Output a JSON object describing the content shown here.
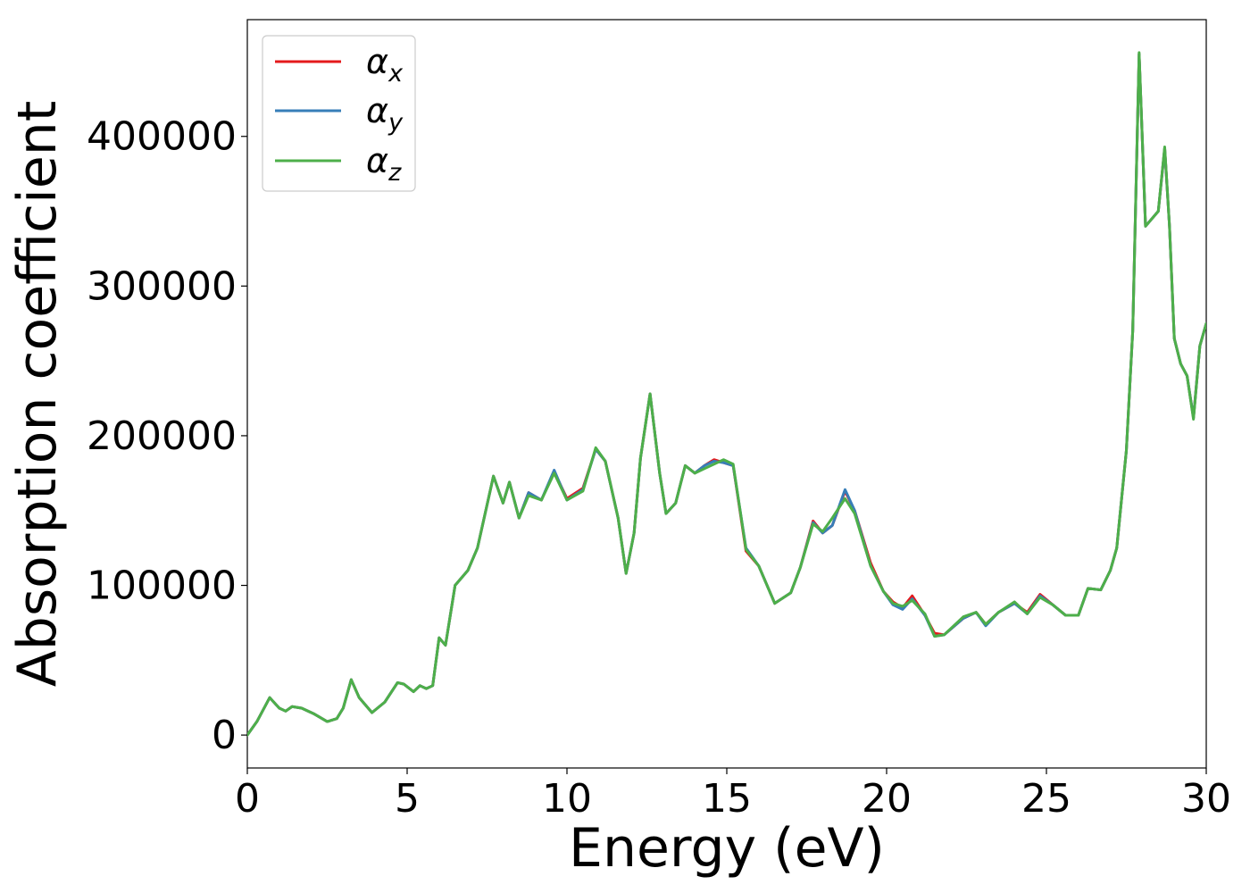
{
  "chart_data": {
    "type": "line",
    "xlabel": "Energy (eV)",
    "ylabel": "Absorption coefficient",
    "xlim": [
      0,
      30
    ],
    "ylim": [
      -22000,
      478000
    ],
    "xticks": [
      0,
      5,
      10,
      15,
      20,
      25,
      30
    ],
    "xtick_labels": [
      "0",
      "5",
      "10",
      "15",
      "20",
      "25",
      "30"
    ],
    "yticks": [
      0,
      100000,
      200000,
      300000,
      400000
    ],
    "ytick_labels": [
      "0",
      "100000",
      "200000",
      "300000",
      "400000"
    ],
    "grid": false,
    "legend_position": "upper-left",
    "x": [
      0,
      0.3,
      0.7,
      1.0,
      1.2,
      1.4,
      1.7,
      2.1,
      2.5,
      2.8,
      3.0,
      3.25,
      3.5,
      3.9,
      4.3,
      4.7,
      4.9,
      5.2,
      5.4,
      5.6,
      5.8,
      6.0,
      6.2,
      6.5,
      6.9,
      7.2,
      7.7,
      8.0,
      8.2,
      8.5,
      8.8,
      9.2,
      9.6,
      10.0,
      10.5,
      10.9,
      11.2,
      11.6,
      11.85,
      12.1,
      12.3,
      12.6,
      12.9,
      13.1,
      13.4,
      13.7,
      14.0,
      14.3,
      14.6,
      14.9,
      15.2,
      15.6,
      16.0,
      16.5,
      17.0,
      17.3,
      17.7,
      18.0,
      18.3,
      18.7,
      19.0,
      19.5,
      19.9,
      20.2,
      20.5,
      20.8,
      21.2,
      21.5,
      21.8,
      22.4,
      22.8,
      23.1,
      23.5,
      24.0,
      24.4,
      24.8,
      25.2,
      25.6,
      26.0,
      26.3,
      26.7,
      27.0,
      27.2,
      27.5,
      27.7,
      27.9,
      28.1,
      28.5,
      28.7,
      28.85,
      29.0,
      29.2,
      29.4,
      29.6,
      29.8,
      30.0
    ],
    "series": [
      {
        "name": "α_x",
        "color": "#e41a1c",
        "values": [
          0,
          9000,
          25000,
          18000,
          16000,
          19000,
          18000,
          14000,
          9000,
          11000,
          18000,
          37000,
          25000,
          15000,
          22000,
          35000,
          34000,
          29000,
          33000,
          31000,
          33000,
          65000,
          60000,
          100000,
          110000,
          125000,
          173000,
          155000,
          169000,
          145000,
          162000,
          157000,
          176000,
          158000,
          165000,
          191000,
          183000,
          145000,
          108000,
          135000,
          185000,
          228000,
          175000,
          148000,
          155000,
          180000,
          175000,
          180000,
          184000,
          182000,
          180000,
          123000,
          113000,
          88000,
          95000,
          112000,
          143000,
          135000,
          140000,
          163000,
          150000,
          115000,
          96000,
          89000,
          85000,
          93000,
          80000,
          68000,
          67000,
          78000,
          82000,
          74000,
          82000,
          88000,
          82000,
          94000,
          87000,
          80000,
          80000,
          98000,
          97000,
          110000,
          125000,
          190000,
          270000,
          455000,
          340000,
          350000,
          392000,
          340000,
          265000,
          248000,
          240000,
          212000,
          260000,
          275000
        ]
      },
      {
        "name": "α_y",
        "color": "#377eb8",
        "values": [
          0,
          9000,
          25000,
          18000,
          16000,
          19000,
          18000,
          14000,
          9000,
          11000,
          18000,
          37000,
          25000,
          15000,
          22000,
          35000,
          34000,
          29000,
          33000,
          31000,
          33000,
          65000,
          60000,
          100000,
          110000,
          125000,
          173000,
          155000,
          169000,
          145000,
          162000,
          157000,
          177000,
          157000,
          164000,
          191000,
          183000,
          145000,
          108000,
          135000,
          185000,
          228000,
          175000,
          148000,
          155000,
          180000,
          175000,
          180000,
          183000,
          182000,
          180000,
          125000,
          113000,
          88000,
          95000,
          112000,
          142000,
          135000,
          140000,
          164000,
          150000,
          113000,
          96000,
          87000,
          84000,
          91000,
          80000,
          66000,
          67000,
          78000,
          82000,
          73000,
          82000,
          88000,
          81000,
          93000,
          87000,
          80000,
          80000,
          98000,
          97000,
          110000,
          125000,
          190000,
          270000,
          455000,
          340000,
          350000,
          392000,
          340000,
          265000,
          248000,
          240000,
          212000,
          260000,
          275000
        ]
      },
      {
        "name": "α_z",
        "color": "#4daf4a",
        "values": [
          0,
          9000,
          25000,
          18000,
          16000,
          19000,
          18000,
          14000,
          9000,
          11000,
          18000,
          37000,
          25000,
          15000,
          22000,
          35000,
          34000,
          29000,
          33000,
          31000,
          33000,
          65000,
          60000,
          100000,
          110000,
          125000,
          173000,
          155000,
          169000,
          145000,
          160000,
          157000,
          175000,
          157000,
          163000,
          192000,
          183000,
          145000,
          108000,
          135000,
          185000,
          228000,
          175000,
          148000,
          155000,
          180000,
          175000,
          178000,
          181000,
          184000,
          181000,
          124000,
          113000,
          88000,
          95000,
          112000,
          141000,
          136000,
          145000,
          158000,
          148000,
          113000,
          96000,
          88000,
          86000,
          90000,
          81000,
          66000,
          67000,
          79000,
          82000,
          74000,
          82000,
          89000,
          81000,
          92000,
          87000,
          80000,
          80000,
          98000,
          97000,
          110000,
          125000,
          190000,
          270000,
          456000,
          340000,
          350000,
          393000,
          340000,
          265000,
          248000,
          240000,
          211000,
          260000,
          275000
        ]
      }
    ]
  },
  "legend": {
    "items": [
      {
        "base": "α",
        "sub": "x"
      },
      {
        "base": "α",
        "sub": "y"
      },
      {
        "base": "α",
        "sub": "z"
      }
    ]
  }
}
